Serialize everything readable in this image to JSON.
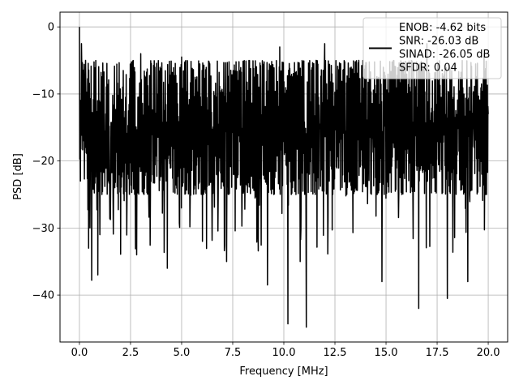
{
  "chart_data": {
    "type": "line",
    "title": "",
    "xlabel": "Frequency [MHz]",
    "ylabel": "PSD [dB]",
    "xlim": [
      -0.95,
      20.95
    ],
    "ylim": [
      -47.0,
      2.2
    ],
    "xticks": [
      0.0,
      2.5,
      5.0,
      7.5,
      10.0,
      12.5,
      15.0,
      17.5,
      20.0
    ],
    "xtick_labels": [
      "0.0",
      "2.5",
      "5.0",
      "7.5",
      "10.0",
      "12.5",
      "15.0",
      "17.5",
      "20.0"
    ],
    "yticks": [
      0,
      -10,
      -20,
      -30,
      -40
    ],
    "ytick_labels": [
      "0",
      "−10",
      "−20",
      "−30",
      "−40"
    ],
    "grid": true,
    "legend_position": "top-right",
    "legend_entries": [
      "ENOB: -4.62 bits",
      "SNR: -26.03 dB",
      "SINAD: -26.05 dB",
      "SFDR: 0.04"
    ],
    "series": [
      {
        "color": "#000000",
        "x_range": [
          0.0,
          20.0
        ],
        "typical_band_db": [
          -25.0,
          -5.0
        ],
        "peak_value": {
          "x": 0.0,
          "y": 0.0
        },
        "notable_points": [
          {
            "x": 0.0,
            "y": 0.0
          },
          {
            "x": 0.05,
            "y": -23.0
          },
          {
            "x": 0.1,
            "y": -2.5
          },
          {
            "x": 0.2,
            "y": -12.0
          },
          {
            "x": 0.3,
            "y": -5.0
          },
          {
            "x": 0.45,
            "y": -33.0
          },
          {
            "x": 0.6,
            "y": -37.8
          },
          {
            "x": 0.9,
            "y": -37.0
          },
          {
            "x": 1.0,
            "y": -31.0
          },
          {
            "x": 2.8,
            "y": -34.0
          },
          {
            "x": 3.0,
            "y": -4.0
          },
          {
            "x": 4.3,
            "y": -36.0
          },
          {
            "x": 5.0,
            "y": -4.5
          },
          {
            "x": 7.2,
            "y": -35.0
          },
          {
            "x": 9.2,
            "y": -38.5
          },
          {
            "x": 9.8,
            "y": -3.0
          },
          {
            "x": 10.2,
            "y": -44.3
          },
          {
            "x": 10.8,
            "y": -35.0
          },
          {
            "x": 11.1,
            "y": -44.8
          },
          {
            "x": 12.0,
            "y": -2.5
          },
          {
            "x": 14.8,
            "y": -38.0
          },
          {
            "x": 16.6,
            "y": -42.0
          },
          {
            "x": 17.0,
            "y": -2.5
          },
          {
            "x": 18.0,
            "y": -40.5
          },
          {
            "x": 19.0,
            "y": -38.0
          },
          {
            "x": 19.8,
            "y": -4.0
          },
          {
            "x": 20.0,
            "y": -13.0
          }
        ]
      }
    ]
  }
}
